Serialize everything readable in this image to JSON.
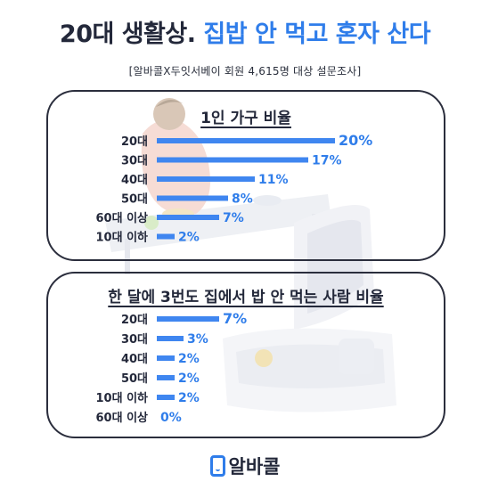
{
  "header": {
    "title_part1": "20대 생활상.",
    "title_part2": "집밥 안 먹고 혼자 산다",
    "subtitle": "[알바콜X두잇서베이 회원 4,615명 대상 설문조사]"
  },
  "colors": {
    "accent": "#2f7dea",
    "bar": "#3f86f0",
    "dark": "#23283a"
  },
  "chart_data": [
    {
      "type": "bar",
      "orientation": "horizontal",
      "title": "1인 가구 비율",
      "categories": [
        "20대",
        "30대",
        "40대",
        "50대",
        "60대 이상",
        "10대 이하"
      ],
      "values": [
        20,
        17,
        11,
        8,
        7,
        2
      ],
      "labels": [
        "20%",
        "17%",
        "11%",
        "8%",
        "7%",
        "2%"
      ],
      "unit": "%",
      "xlim": [
        0,
        20
      ]
    },
    {
      "type": "bar",
      "orientation": "horizontal",
      "title": "한 달에 3번도 집에서 밥 안 먹는 사람 비율",
      "categories": [
        "20대",
        "30대",
        "40대",
        "50대",
        "10대 이하",
        "60대 이상"
      ],
      "values": [
        7,
        3,
        2,
        2,
        2,
        0
      ],
      "labels": [
        "7%",
        "3%",
        "2%",
        "2%",
        "2%",
        "0%"
      ],
      "unit": "%",
      "xlim": [
        0,
        20
      ]
    }
  ],
  "footer": {
    "logo_text": "알바콜"
  }
}
